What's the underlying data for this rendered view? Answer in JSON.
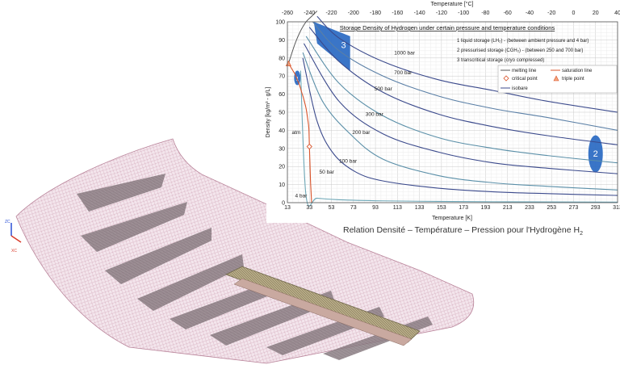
{
  "chart_data": {
    "type": "line",
    "title": "Storage Density of Hydrogen under certain pressure and temperature conditions",
    "xlabel": "Temperature [K]",
    "x2label": "Temperature [°C]",
    "ylabel": "Density [kg/m³ - g/L]",
    "xlim": [
      13,
      313
    ],
    "ylim": [
      0,
      100
    ],
    "x_ticks": [
      "13",
      "33",
      "53",
      "73",
      "93",
      "113",
      "133",
      "153",
      "173",
      "193",
      "213",
      "233",
      "253",
      "273",
      "293",
      "313"
    ],
    "x2_ticks": [
      "-260",
      "-240",
      "-220",
      "-200",
      "-180",
      "-160",
      "-140",
      "-120",
      "-100",
      "-80",
      "-60",
      "-40",
      "-20",
      "0",
      "20",
      "40"
    ],
    "y_ticks": [
      "0",
      "10",
      "20",
      "30",
      "40",
      "50",
      "60",
      "70",
      "80",
      "90",
      "100"
    ],
    "grid": true,
    "legend_items": [
      {
        "label": "1 liquid storage (LH₂) - (between ambient pressure and 4 bar)"
      },
      {
        "label": "2 pressurised storage (CGH₂) - (between 250 and 700 bar)"
      },
      {
        "label": "3 transcritical storage (cryo compressed)"
      }
    ],
    "line_legend": [
      {
        "label": "melting line",
        "color": "#555555"
      },
      {
        "label": "saturation line",
        "color": "#d9542b"
      },
      {
        "label": "critical point",
        "color": "#d9542b"
      },
      {
        "label": "triple point",
        "color": "#d9542b"
      },
      {
        "label": "isobare",
        "color": "#3b4a8c"
      }
    ],
    "zones": [
      {
        "label": "1",
        "x": 22,
        "y": 69
      },
      {
        "label": "2",
        "x": 293,
        "y": 27
      },
      {
        "label": "3",
        "x": 64,
        "y": 87
      }
    ],
    "annotations": [
      {
        "label": "atm",
        "x": 17,
        "y": 38
      }
    ],
    "series": [
      {
        "name": "1000 bar",
        "x": [
          40,
          60,
          100,
          150,
          200,
          250,
          313
        ],
        "y": [
          103,
          91,
          78,
          68,
          62,
          56,
          50
        ]
      },
      {
        "name": "700 bar",
        "x": [
          36,
          60,
          100,
          150,
          200,
          250,
          313
        ],
        "y": [
          100,
          84,
          70,
          59,
          52,
          47,
          40
        ]
      },
      {
        "name": "500 bar",
        "x": [
          33,
          60,
          100,
          150,
          200,
          250,
          313
        ],
        "y": [
          97,
          78,
          61,
          49,
          42,
          37,
          32
        ]
      },
      {
        "name": "300 bar",
        "x": [
          30,
          60,
          100,
          150,
          200,
          250,
          313
        ],
        "y": [
          92,
          66,
          48,
          36,
          30,
          26,
          22
        ]
      },
      {
        "name": "200 bar",
        "x": [
          28,
          60,
          100,
          150,
          200,
          250,
          313
        ],
        "y": [
          88,
          56,
          38,
          28,
          22,
          19,
          16
        ]
      },
      {
        "name": "100 bar",
        "x": [
          27,
          45,
          70,
          100,
          150,
          200,
          250,
          313
        ],
        "y": [
          83,
          56,
          38,
          24,
          15,
          11,
          9,
          7
        ]
      },
      {
        "name": "50 bar",
        "x": [
          27,
          40,
          55,
          75,
          100,
          150,
          200,
          250,
          313
        ],
        "y": [
          80,
          45,
          27,
          17,
          12,
          8,
          6,
          5,
          4
        ]
      },
      {
        "name": "4 bar",
        "x": [
          25,
          30,
          40,
          60,
          100,
          150,
          200,
          250,
          313
        ],
        "y": [
          73,
          3.5,
          2.5,
          1.6,
          1.0,
          0.7,
          0.5,
          0.4,
          0.3
        ]
      }
    ],
    "saturation_line": {
      "x": [
        14,
        16,
        18,
        20,
        22,
        24,
        26,
        28,
        30,
        31.5,
        32.5,
        33,
        33.5,
        34,
        34.5,
        35
      ],
      "y": [
        77,
        75,
        73,
        71,
        68,
        65,
        61,
        57,
        52,
        46,
        41,
        31,
        22,
        12,
        6,
        0
      ]
    },
    "melting_line": {
      "x": [
        14,
        20,
        25,
        30,
        35,
        40
      ],
      "y": [
        77,
        88,
        95,
        100,
        103,
        106
      ]
    },
    "critical_point": {
      "x": 33,
      "y": 31
    },
    "triple_point": {
      "x": 14,
      "y": 77
    }
  },
  "caption": {
    "main": "Relation Densité – Température – Pression  pour l'Hydrogène H",
    "sub": "2"
  },
  "model_view": {
    "axis_labels": [
      "ZC",
      "XC"
    ],
    "colors": {
      "mesh": "#c48aa0",
      "mesh_fill": "#f1e2ea",
      "tank": "#9a8c6a"
    }
  }
}
